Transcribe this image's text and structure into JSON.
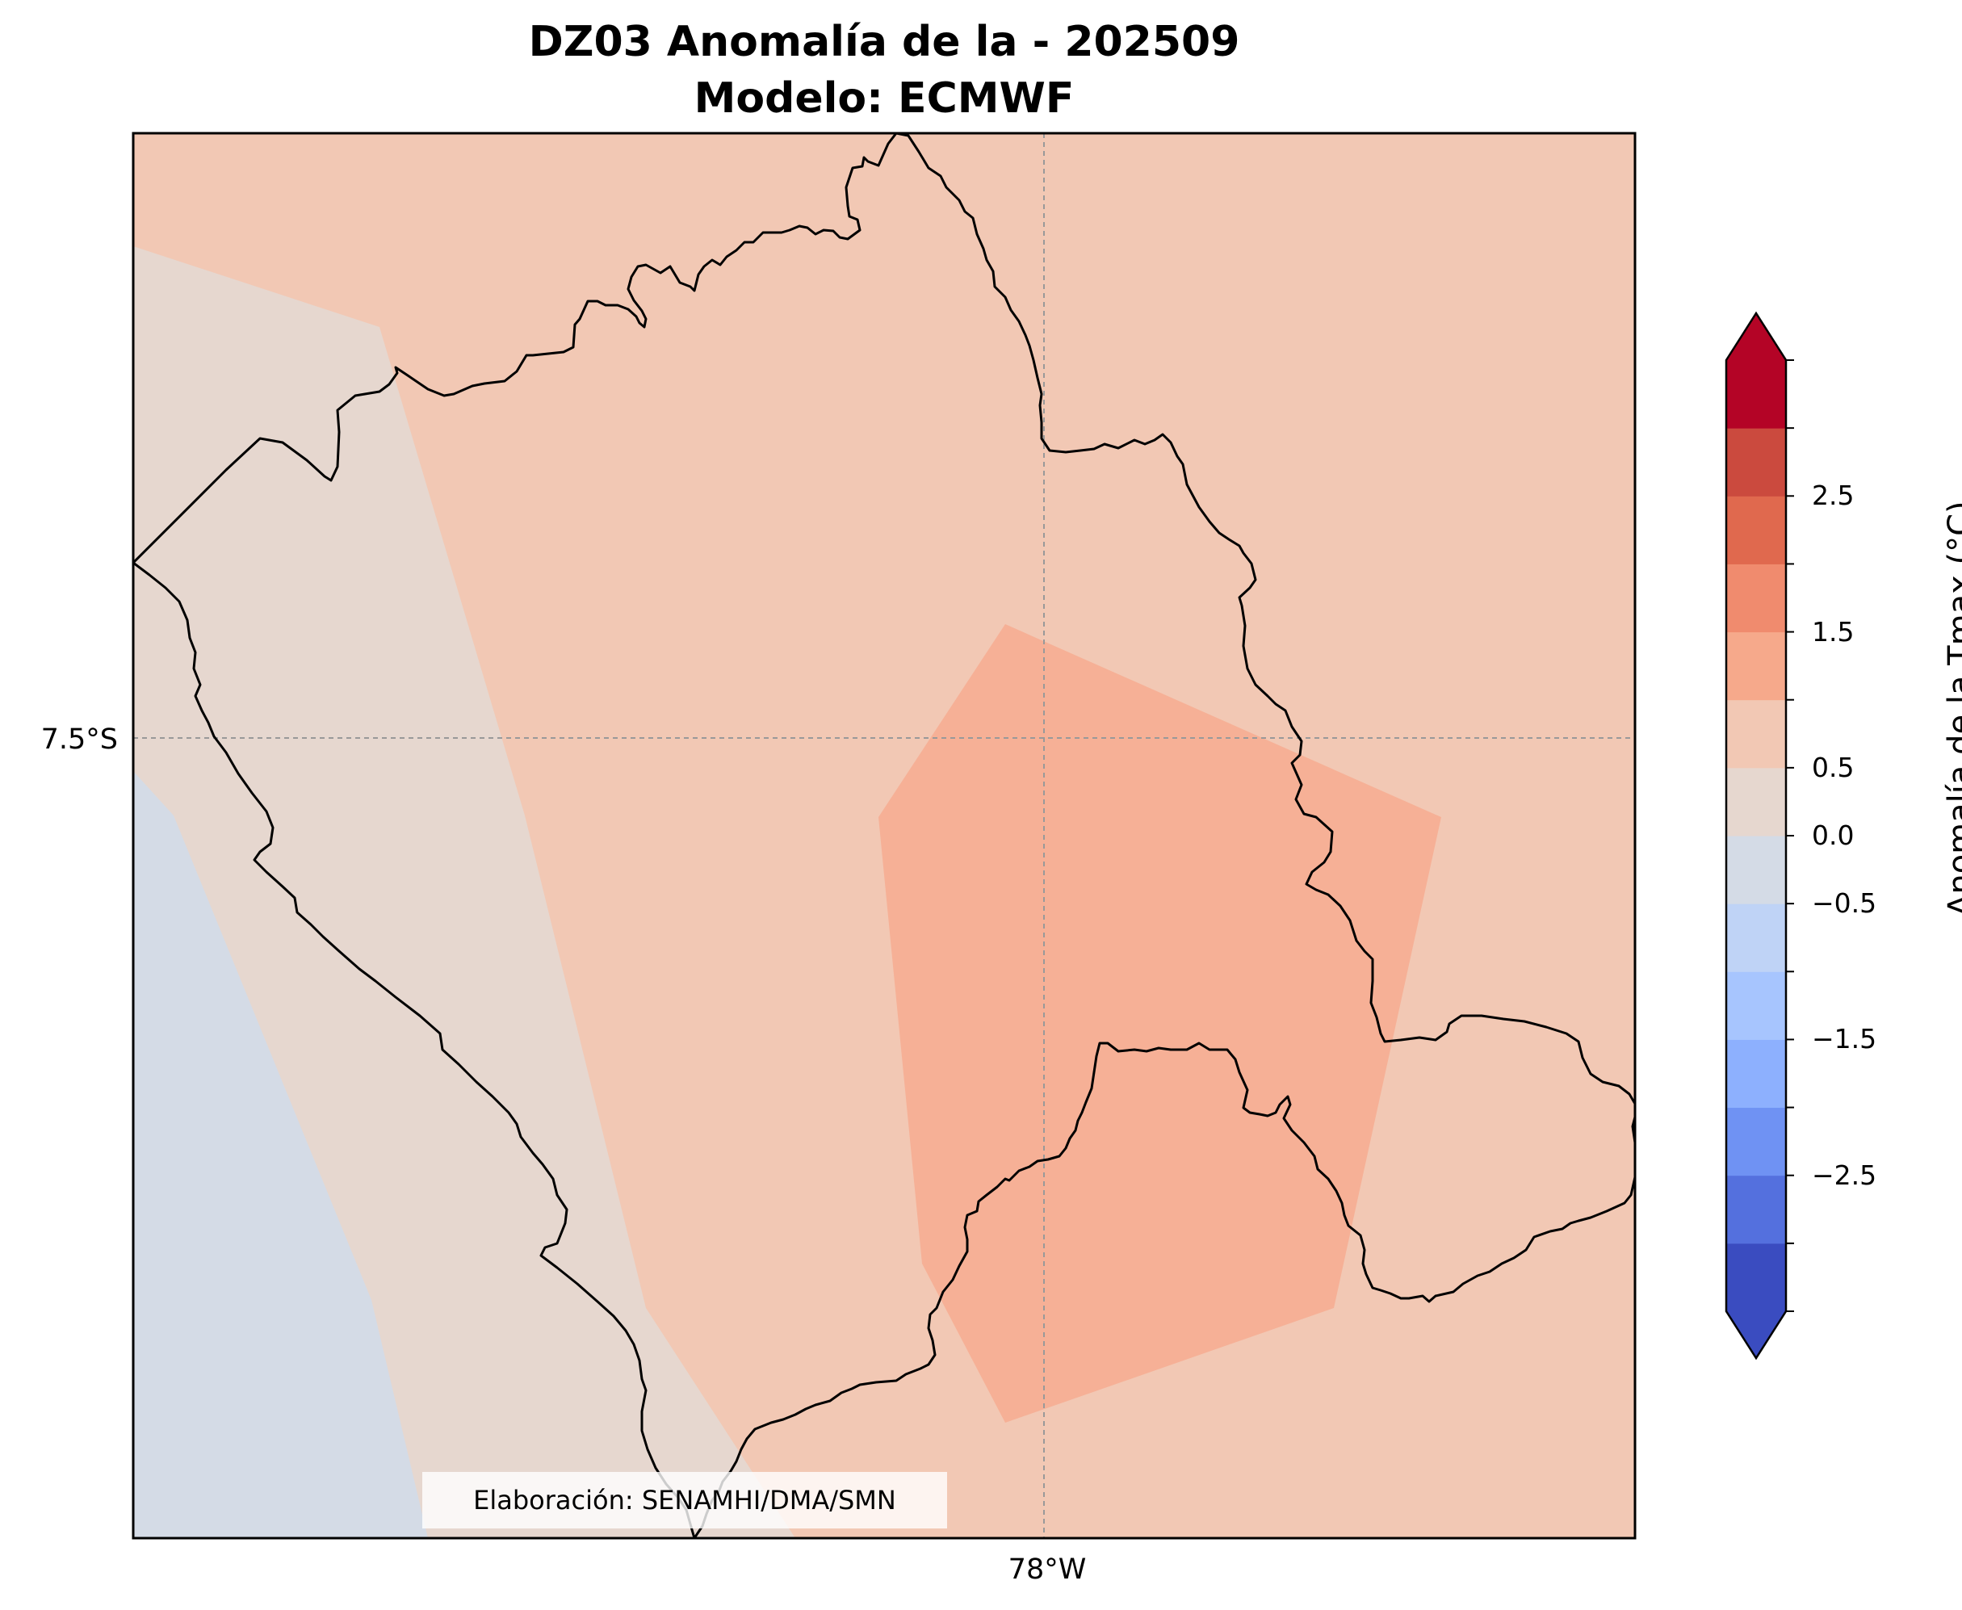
{
  "title": {
    "line1": "DZ03 Anomalía de la - 202509",
    "line2": "Modelo: ECMWF"
  },
  "axes": {
    "lat_label": "7.5°S",
    "lon_label": "78°W",
    "gridlines": true
  },
  "credit": "Elaboración: SENAMHI/DMA/SMN",
  "colorbar": {
    "label": "Anomalía de la Tmax (°C)",
    "ticks": [
      "2.5",
      "1.5",
      "0.5",
      "0.0",
      "−0.5",
      "−1.5",
      "−2.5"
    ],
    "colors": [
      "#3a4cc0",
      "#5470de",
      "#6f92f3",
      "#8db0fe",
      "#a7c5fe",
      "#bfd3f6",
      "#d4dbe6",
      "#e6d7cf",
      "#f2c8b4",
      "#f6a98b",
      "#f08b6e",
      "#e0694e",
      "#cb4a3e",
      "#b40426"
    ],
    "extend": "both"
  },
  "map": {
    "colors": {
      "neutral_positive": "#f2c8b4",
      "near_zero": "#e6d7cf",
      "slight_negative": "#d4dbe6",
      "warm": "#f6b096",
      "border": "#000000",
      "grid": "#999999"
    }
  }
}
